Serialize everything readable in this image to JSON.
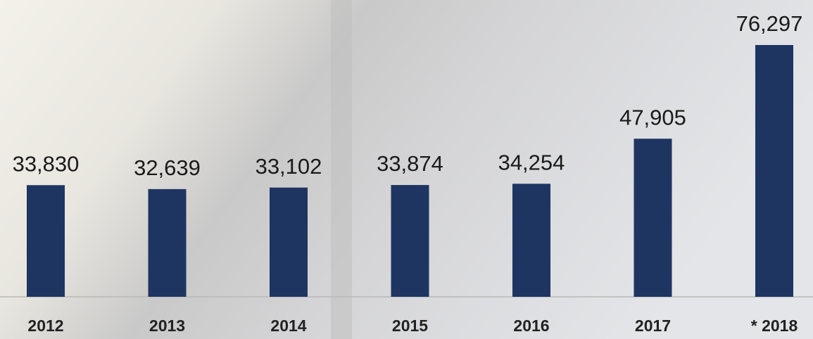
{
  "chart_data": {
    "type": "bar",
    "categories": [
      "2012",
      "2013",
      "2014",
      "2015",
      "2016",
      "2017",
      "* 2018"
    ],
    "values": [
      33830,
      32639,
      33102,
      33874,
      34254,
      47905,
      76297
    ],
    "value_labels": [
      "33,830",
      "32,639",
      "33,102",
      "33,874",
      "34,254",
      "47,905",
      "76,297"
    ],
    "color": "#1f3561"
  }
}
